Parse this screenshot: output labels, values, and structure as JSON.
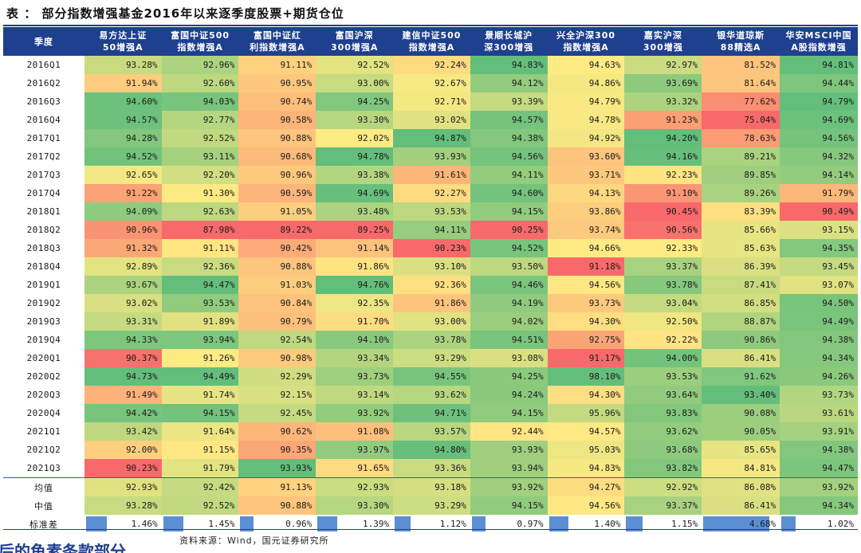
{
  "title": "表 ： 部分指数增强基金2016年以来逐季度股票+期货仓位",
  "source": "资料来源：Wind，国元证券研究所",
  "cut_text": "后的鱼素条款部分",
  "table": {
    "corner_label": "季度",
    "funds": [
      {
        "line1": "易方达上证",
        "line2": "50增强A"
      },
      {
        "line1": "富国中证500",
        "line2": "指数增强A"
      },
      {
        "line1": "富国中证红",
        "line2": "利指数增强A"
      },
      {
        "line1": "富国沪深",
        "line2": "300增强A"
      },
      {
        "line1": "建信中证500",
        "line2": "指数增强A"
      },
      {
        "line1": "景顺长城沪",
        "line2": "深300增强"
      },
      {
        "line1": "兴全沪深300",
        "line2": "指数增强A"
      },
      {
        "line1": "嘉实沪深",
        "line2": "300增强"
      },
      {
        "line1": "银华道琼斯",
        "line2": "88精选A"
      },
      {
        "line1": "华安MSCI中国",
        "line2": "A股指数增强"
      }
    ],
    "rows": [
      {
        "quarter": "2016Q1",
        "values": [
          "93.28%",
          "92.96%",
          "91.11%",
          "92.52%",
          "92.24%",
          "94.83%",
          "94.63%",
          "92.97%",
          "81.52%",
          "94.81%"
        ]
      },
      {
        "quarter": "2016Q2",
        "values": [
          "91.94%",
          "92.60%",
          "90.95%",
          "93.00%",
          "92.67%",
          "94.12%",
          "94.86%",
          "93.69%",
          "81.64%",
          "94.44%"
        ]
      },
      {
        "quarter": "2016Q3",
        "values": [
          "94.60%",
          "94.03%",
          "90.74%",
          "94.25%",
          "92.71%",
          "93.39%",
          "94.79%",
          "93.32%",
          "77.62%",
          "94.79%"
        ]
      },
      {
        "quarter": "2016Q4",
        "values": [
          "94.57%",
          "92.77%",
          "90.58%",
          "93.30%",
          "93.02%",
          "94.57%",
          "94.78%",
          "91.23%",
          "75.04%",
          "94.69%"
        ]
      },
      {
        "quarter": "2017Q1",
        "values": [
          "94.28%",
          "92.52%",
          "90.88%",
          "92.02%",
          "94.87%",
          "94.38%",
          "94.92%",
          "94.20%",
          "78.63%",
          "94.56%"
        ]
      },
      {
        "quarter": "2017Q2",
        "values": [
          "94.52%",
          "93.11%",
          "90.68%",
          "94.78%",
          "93.93%",
          "94.56%",
          "93.60%",
          "94.16%",
          "89.21%",
          "94.32%"
        ]
      },
      {
        "quarter": "2017Q3",
        "values": [
          "92.65%",
          "92.20%",
          "90.96%",
          "93.38%",
          "91.61%",
          "94.11%",
          "93.71%",
          "92.23%",
          "89.85%",
          "94.14%"
        ]
      },
      {
        "quarter": "2017Q4",
        "values": [
          "91.22%",
          "91.30%",
          "90.59%",
          "94.69%",
          "92.27%",
          "94.60%",
          "94.13%",
          "91.10%",
          "89.26%",
          "91.79%"
        ]
      },
      {
        "quarter": "2018Q1",
        "values": [
          "94.09%",
          "92.63%",
          "91.05%",
          "93.48%",
          "93.53%",
          "94.15%",
          "93.86%",
          "90.45%",
          "83.39%",
          "90.49%"
        ]
      },
      {
        "quarter": "2018Q2",
        "values": [
          "90.96%",
          "87.98%",
          "89.22%",
          "89.25%",
          "94.11%",
          "90.25%",
          "93.74%",
          "90.56%",
          "85.66%",
          "93.15%"
        ]
      },
      {
        "quarter": "2018Q3",
        "values": [
          "91.32%",
          "91.11%",
          "90.42%",
          "91.14%",
          "90.23%",
          "94.52%",
          "94.66%",
          "92.33%",
          "85.63%",
          "94.35%"
        ]
      },
      {
        "quarter": "2018Q4",
        "values": [
          "92.89%",
          "92.36%",
          "90.88%",
          "91.86%",
          "93.10%",
          "93.50%",
          "91.18%",
          "93.37%",
          "86.39%",
          "93.45%"
        ]
      },
      {
        "quarter": "2019Q1",
        "values": [
          "93.67%",
          "94.47%",
          "91.03%",
          "94.76%",
          "92.36%",
          "94.46%",
          "94.56%",
          "93.78%",
          "87.41%",
          "93.07%"
        ]
      },
      {
        "quarter": "2019Q2",
        "values": [
          "93.02%",
          "93.53%",
          "90.84%",
          "92.35%",
          "91.86%",
          "94.19%",
          "93.73%",
          "93.04%",
          "86.85%",
          "94.50%"
        ]
      },
      {
        "quarter": "2019Q3",
        "values": [
          "93.31%",
          "91.89%",
          "90.79%",
          "91.70%",
          "93.00%",
          "94.02%",
          "94.30%",
          "92.50%",
          "88.87%",
          "94.49%"
        ]
      },
      {
        "quarter": "2019Q4",
        "values": [
          "94.33%",
          "93.94%",
          "92.54%",
          "94.10%",
          "93.78%",
          "94.51%",
          "92.75%",
          "92.22%",
          "90.86%",
          "94.38%"
        ]
      },
      {
        "quarter": "2020Q1",
        "values": [
          "90.37%",
          "91.26%",
          "90.98%",
          "93.34%",
          "93.29%",
          "93.08%",
          "91.17%",
          "94.00%",
          "86.41%",
          "94.34%"
        ]
      },
      {
        "quarter": "2020Q2",
        "values": [
          "94.73%",
          "94.49%",
          "92.29%",
          "93.73%",
          "94.55%",
          "94.25%",
          "98.10%",
          "93.53%",
          "91.62%",
          "94.26%"
        ]
      },
      {
        "quarter": "2020Q3",
        "values": [
          "91.49%",
          "91.74%",
          "92.15%",
          "93.14%",
          "93.62%",
          "94.24%",
          "94.30%",
          "93.64%",
          "93.40%",
          "93.73%"
        ]
      },
      {
        "quarter": "2020Q4",
        "values": [
          "94.42%",
          "94.15%",
          "92.45%",
          "93.92%",
          "94.71%",
          "94.15%",
          "95.96%",
          "93.83%",
          "90.08%",
          "93.61%"
        ]
      },
      {
        "quarter": "2021Q1",
        "values": [
          "93.42%",
          "91.64%",
          "90.62%",
          "91.08%",
          "93.57%",
          "92.44%",
          "94.57%",
          "93.62%",
          "90.05%",
          "93.91%"
        ]
      },
      {
        "quarter": "2021Q2",
        "values": [
          "92.00%",
          "91.15%",
          "90.35%",
          "93.97%",
          "94.80%",
          "93.93%",
          "95.03%",
          "93.68%",
          "85.65%",
          "94.38%"
        ]
      },
      {
        "quarter": "2021Q3",
        "values": [
          "90.23%",
          "91.79%",
          "93.93%",
          "91.65%",
          "93.36%",
          "93.94%",
          "94.83%",
          "93.82%",
          "84.81%",
          "94.47%"
        ]
      }
    ],
    "stats": [
      {
        "label": "均值",
        "values": [
          "92.93%",
          "92.42%",
          "91.13%",
          "92.93%",
          "93.18%",
          "93.92%",
          "94.27%",
          "92.92%",
          "86.08%",
          "93.92%"
        ]
      },
      {
        "label": "中值",
        "values": [
          "93.28%",
          "92.52%",
          "90.88%",
          "93.30%",
          "93.29%",
          "94.15%",
          "94.56%",
          "93.37%",
          "86.41%",
          "94.34%"
        ]
      }
    ],
    "std": {
      "label": "标准差",
      "values": [
        "1.46%",
        "1.45%",
        "0.96%",
        "1.39%",
        "1.12%",
        "0.97%",
        "1.40%",
        "1.15%",
        "4.68%",
        "1.02%"
      ]
    }
  }
}
